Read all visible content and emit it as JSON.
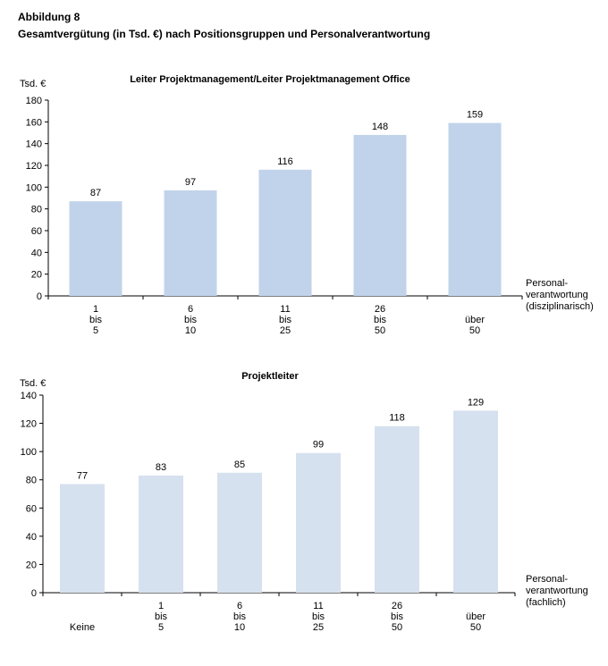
{
  "figure": {
    "number": "Abbildung 8",
    "title": "Gesamtvergütung (in Tsd. €) nach Positionsgruppen und Personalverantwortung"
  },
  "chart_data": [
    {
      "type": "bar",
      "title": "Leiter Projektmanagement/Leiter Projektmanagement Office",
      "ylabel": "Tsd. €",
      "xlabel": [
        "Personal-",
        "verantwortung",
        "(disziplinarisch)"
      ],
      "ylim": [
        0,
        180
      ],
      "yticks": [
        0,
        20,
        40,
        60,
        80,
        100,
        120,
        140,
        160,
        180
      ],
      "categories": [
        [
          "1",
          "bis",
          "5"
        ],
        [
          "6",
          "bis",
          "10"
        ],
        [
          "11",
          "bis",
          "25"
        ],
        [
          "26",
          "bis",
          "50"
        ],
        [
          "über",
          "50"
        ]
      ],
      "values": [
        87,
        97,
        116,
        148,
        159
      ],
      "bar_color": "#c1d3ea",
      "grid": false,
      "legend": "none"
    },
    {
      "type": "bar",
      "title": "Projektleiter",
      "ylabel": "Tsd. €",
      "xlabel": [
        "Personal-",
        "verantwortung",
        "(fachlich)"
      ],
      "ylim": [
        0,
        140
      ],
      "yticks": [
        0,
        20,
        40,
        60,
        80,
        100,
        120,
        140
      ],
      "categories": [
        [
          "Keine"
        ],
        [
          "1",
          "bis",
          "5"
        ],
        [
          "6",
          "bis",
          "10"
        ],
        [
          "11",
          "bis",
          "25"
        ],
        [
          "26",
          "bis",
          "50"
        ],
        [
          "über",
          "50"
        ]
      ],
      "values": [
        77,
        83,
        85,
        99,
        118,
        129
      ],
      "bar_color": "#d6e1ef",
      "grid": false,
      "legend": "none"
    }
  ]
}
